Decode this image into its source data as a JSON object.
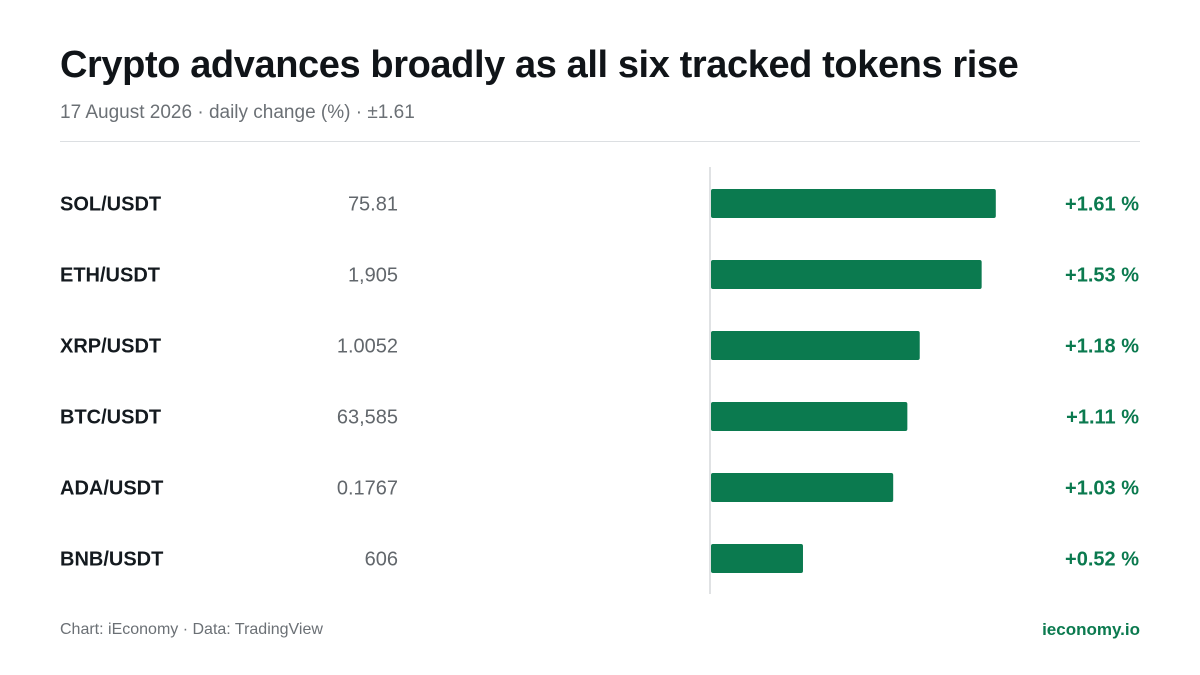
{
  "header": {
    "title": "Crypto advances broadly as all six tracked tokens rise",
    "subtitle": "17 August 2026 · daily change (%) · ±1.61"
  },
  "footer": {
    "source": "Chart: iEconomy · Data: TradingView",
    "brand": "ieconomy.io"
  },
  "colors": {
    "positive": "#0b7a4f",
    "axis": "#d6d9dc"
  },
  "chart_data": {
    "type": "bar",
    "orientation": "horizontal",
    "categories": [
      "SOL/USDT",
      "ETH/USDT",
      "XRP/USDT",
      "BTC/USDT",
      "ADA/USDT",
      "BNB/USDT"
    ],
    "prices": [
      "75.81",
      "1,905",
      "1.0052",
      "63,585",
      "0.1767",
      "606"
    ],
    "values": [
      1.61,
      1.53,
      1.18,
      1.11,
      1.03,
      0.52
    ],
    "value_labels": [
      "+1.61 %",
      "+1.53 %",
      "+1.18 %",
      "+1.11 %",
      "+1.03 %",
      "+0.52 %"
    ],
    "xlim": [
      -1.61,
      1.61
    ],
    "grid": false,
    "legend": "none"
  }
}
